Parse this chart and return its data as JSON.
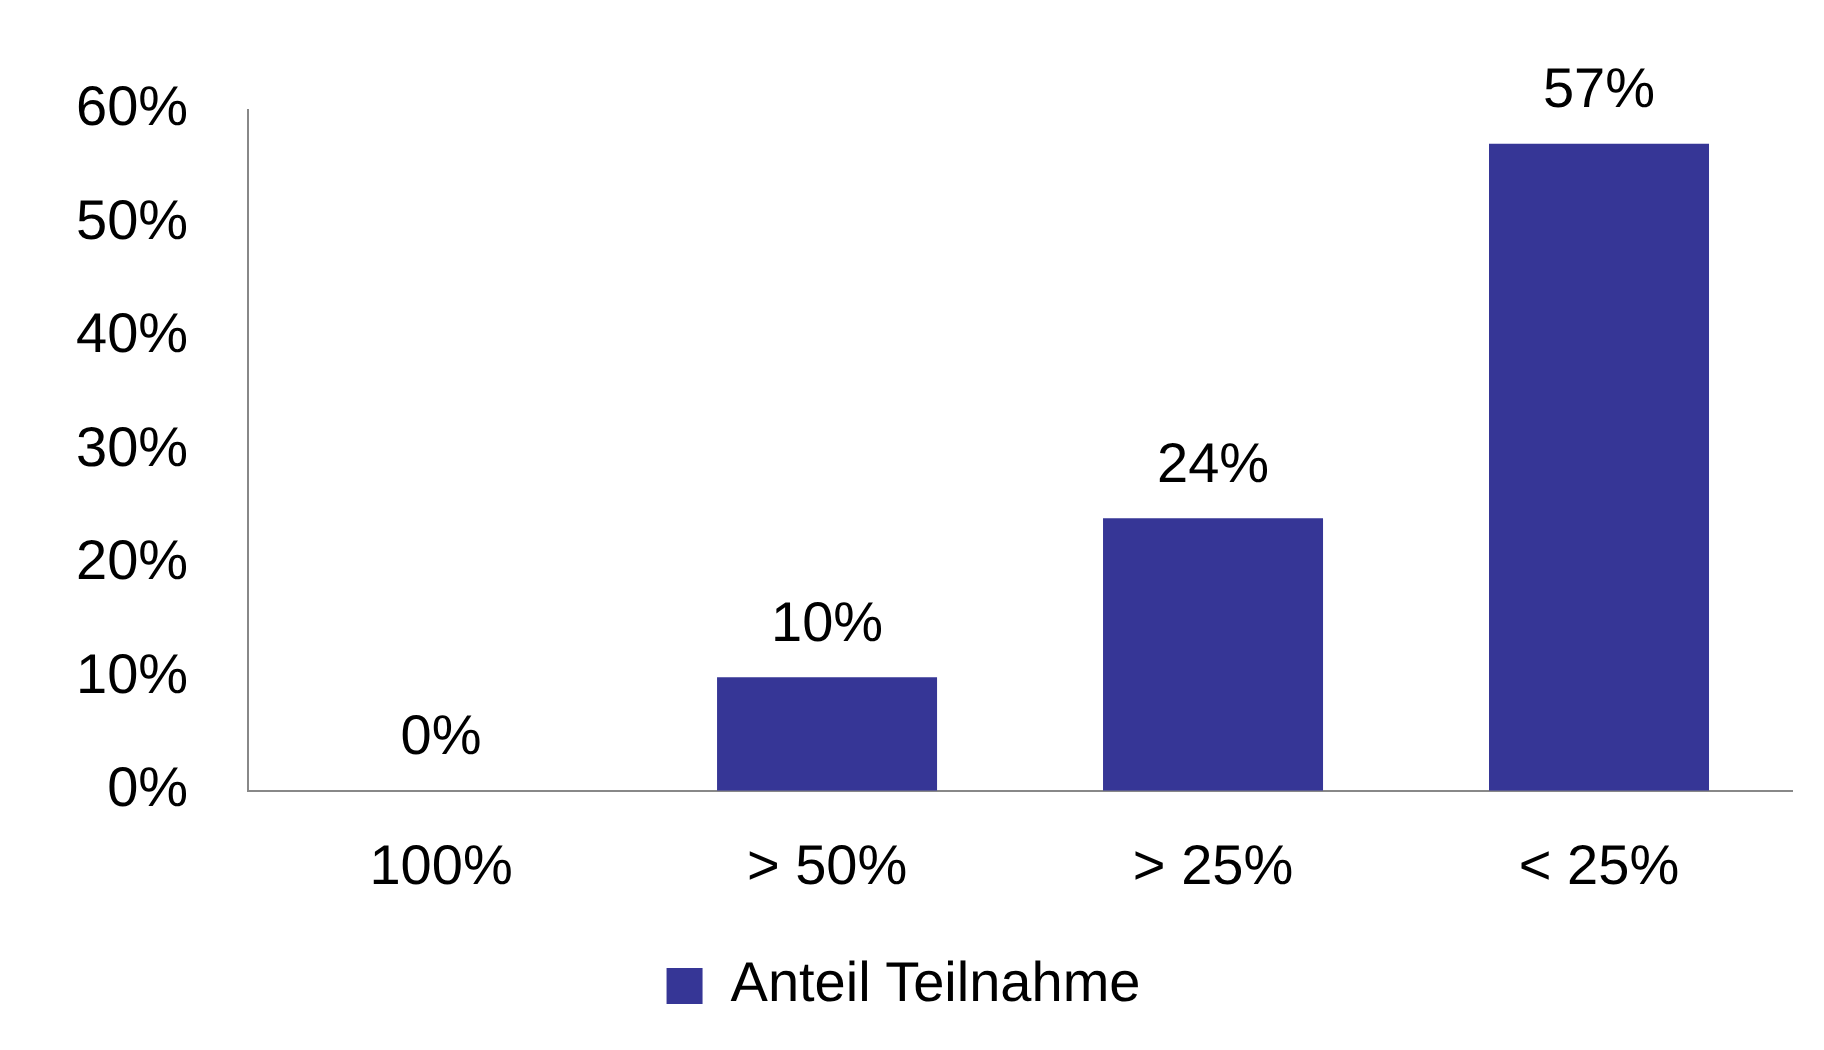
{
  "chart_data": {
    "type": "bar",
    "categories": [
      "100%",
      "> 50%",
      "> 25%",
      "< 25%"
    ],
    "series": [
      {
        "name": "Anteil Teilnahme",
        "color": "#363696",
        "values": [
          0,
          10,
          24,
          57
        ],
        "value_labels": [
          "0%",
          "10%",
          "24%",
          "57%"
        ]
      }
    ],
    "ylim": [
      0,
      60
    ],
    "yticks": [
      {
        "value": 0,
        "label": "0%"
      },
      {
        "value": 10,
        "label": "10%"
      },
      {
        "value": 20,
        "label": "20%"
      },
      {
        "value": 30,
        "label": "30%"
      },
      {
        "value": 40,
        "label": "40%"
      },
      {
        "value": 50,
        "label": "50%"
      },
      {
        "value": 60,
        "label": "60%"
      }
    ],
    "grid": false,
    "legend": "bottom"
  }
}
